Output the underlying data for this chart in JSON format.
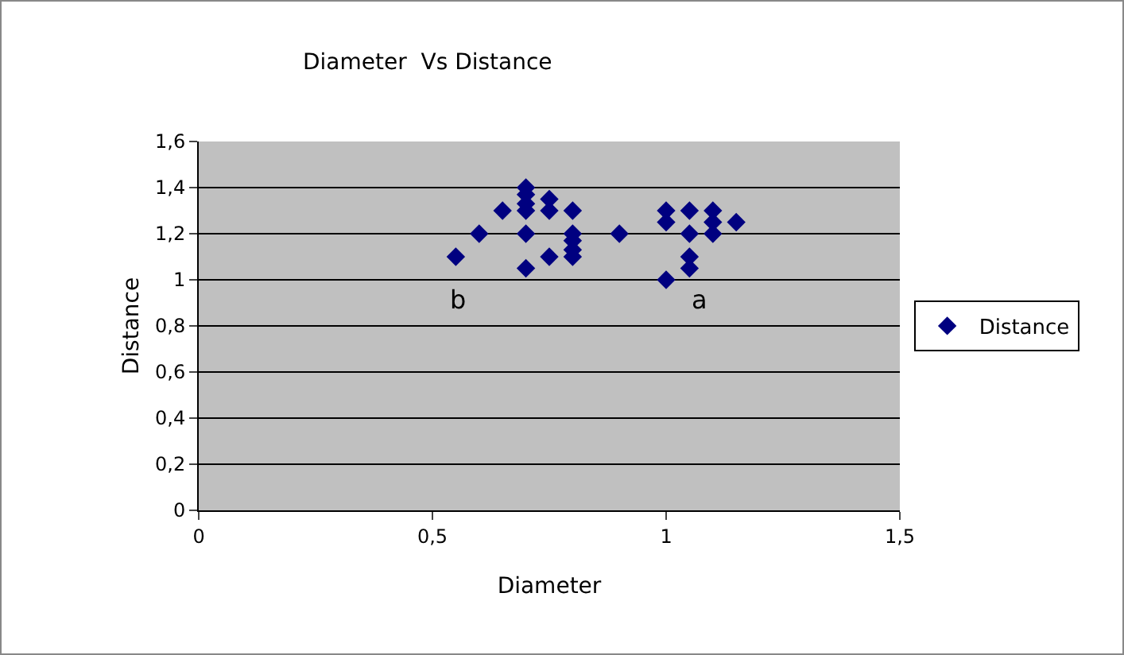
{
  "chart_data": {
    "type": "scatter",
    "title": "Diameter  Vs Distance",
    "xlabel": "Diameter",
    "ylabel": "Distance",
    "series": [
      {
        "name": "Distance",
        "color": "#000080",
        "x": [
          0.55,
          0.6,
          0.65,
          0.7,
          0.7,
          0.7,
          0.7,
          0.7,
          0.7,
          0.75,
          0.75,
          0.75,
          0.8,
          0.8,
          0.8,
          0.8,
          0.8,
          0.9,
          1.0,
          1.0,
          1.0,
          1.05,
          1.05,
          1.05,
          1.05,
          1.1,
          1.1,
          1.1,
          1.15
        ],
        "values": [
          1.1,
          1.2,
          1.3,
          1.4,
          1.37,
          1.33,
          1.3,
          1.2,
          1.05,
          1.35,
          1.3,
          1.1,
          1.3,
          1.2,
          1.17,
          1.13,
          1.1,
          1.2,
          1.3,
          1.25,
          1.0,
          1.3,
          1.2,
          1.1,
          1.05,
          1.3,
          1.25,
          1.2,
          1.25
        ]
      }
    ],
    "xlim": [
      0,
      1.5
    ],
    "xticks": [
      0,
      {
        "value": 0.5,
        "label": "0,5"
      },
      1,
      {
        "value": 1.5,
        "label": "1,5"
      }
    ],
    "ylim": [
      0,
      1.6
    ],
    "yticks": [
      0,
      {
        "value": 0.2,
        "label": "0,2"
      },
      {
        "value": 0.4,
        "label": "0,4"
      },
      {
        "value": 0.6,
        "label": "0,6"
      },
      {
        "value": 0.8,
        "label": "0,8"
      },
      1,
      {
        "value": 1.2,
        "label": "1,2"
      },
      {
        "value": 1.4,
        "label": "1,4"
      },
      {
        "value": 1.6,
        "label": "1,6"
      }
    ],
    "annotations": [
      "b",
      "a"
    ],
    "grid": "y",
    "legend": "right",
    "marker": "diamond"
  }
}
